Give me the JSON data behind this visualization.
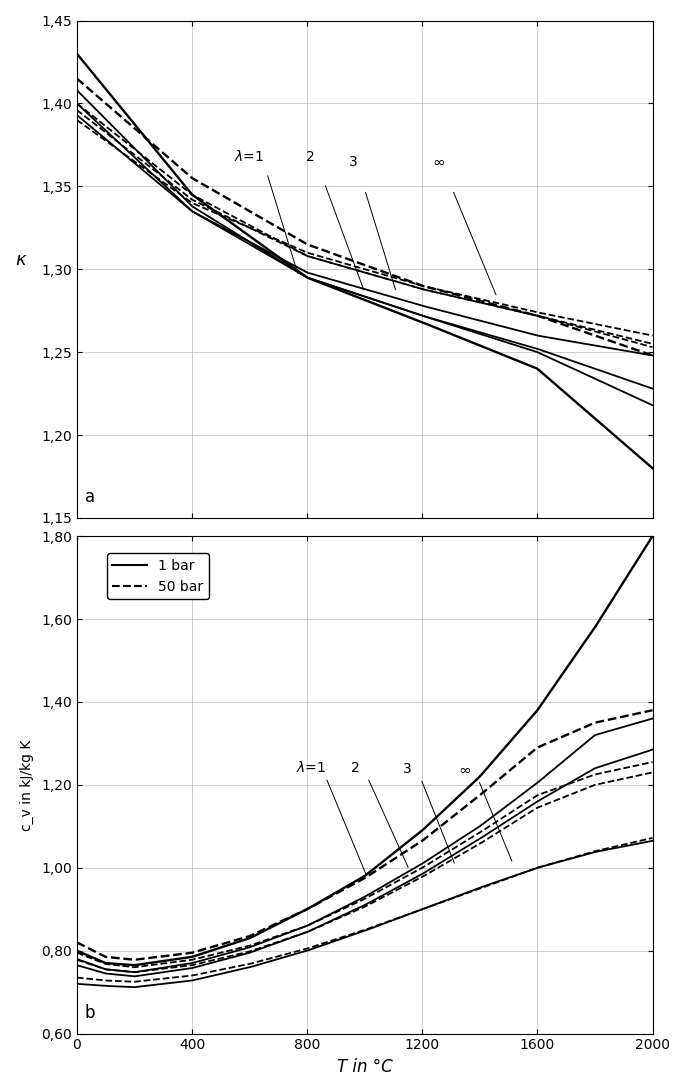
{
  "title_a": "a",
  "title_b": "b",
  "xlabel": "T in °C",
  "ylabel_a": "κ",
  "ylabel_b": "c_v in kJ/kg K",
  "xlim": [
    0,
    2000
  ],
  "ylim_a": [
    1.15,
    1.45
  ],
  "ylim_b": [
    0.6,
    1.8
  ],
  "xticks": [
    0,
    400,
    800,
    1200,
    1600,
    2000
  ],
  "yticks_a": [
    1.15,
    1.2,
    1.25,
    1.3,
    1.35,
    1.4,
    1.45
  ],
  "yticks_b": [
    0.6,
    0.8,
    1.0,
    1.2,
    1.4,
    1.6,
    1.8
  ],
  "legend_solid": "1 bar",
  "legend_dashed": "50 bar",
  "background_color": "#ffffff",
  "line_color": "#000000",
  "kappa_pts1_1": [
    [
      0,
      1.43
    ],
    [
      400,
      1.345
    ],
    [
      800,
      1.295
    ],
    [
      1200,
      1.268
    ],
    [
      1600,
      1.24
    ],
    [
      2000,
      1.18
    ]
  ],
  "kappa_pts1_50": [
    [
      0,
      1.415
    ],
    [
      400,
      1.355
    ],
    [
      800,
      1.315
    ],
    [
      1200,
      1.29
    ],
    [
      1600,
      1.272
    ],
    [
      2000,
      1.248
    ]
  ],
  "kappa_pts2_1": [
    [
      0,
      1.408
    ],
    [
      400,
      1.338
    ],
    [
      800,
      1.295
    ],
    [
      1200,
      1.272
    ],
    [
      1600,
      1.25
    ],
    [
      2000,
      1.218
    ]
  ],
  "kappa_pts2_50": [
    [
      0,
      1.4
    ],
    [
      400,
      1.345
    ],
    [
      800,
      1.308
    ],
    [
      1200,
      1.288
    ],
    [
      1600,
      1.272
    ],
    [
      2000,
      1.253
    ]
  ],
  "kappa_pts3_1": [
    [
      0,
      1.4
    ],
    [
      400,
      1.335
    ],
    [
      800,
      1.295
    ],
    [
      1200,
      1.272
    ],
    [
      1600,
      1.252
    ],
    [
      2000,
      1.228
    ]
  ],
  "kappa_pts3_50": [
    [
      0,
      1.396
    ],
    [
      400,
      1.342
    ],
    [
      800,
      1.308
    ],
    [
      1200,
      1.288
    ],
    [
      1600,
      1.272
    ],
    [
      2000,
      1.255
    ]
  ],
  "kappa_ptsi_1": [
    [
      0,
      1.393
    ],
    [
      400,
      1.335
    ],
    [
      800,
      1.298
    ],
    [
      1200,
      1.278
    ],
    [
      1600,
      1.26
    ],
    [
      2000,
      1.248
    ]
  ],
  "kappa_ptsi_50": [
    [
      0,
      1.39
    ],
    [
      400,
      1.34
    ],
    [
      800,
      1.31
    ],
    [
      1200,
      1.29
    ],
    [
      1600,
      1.274
    ],
    [
      2000,
      1.26
    ]
  ],
  "cv_pts1_1": [
    [
      0,
      0.8
    ],
    [
      100,
      0.77
    ],
    [
      200,
      0.765
    ],
    [
      400,
      0.785
    ],
    [
      600,
      0.83
    ],
    [
      800,
      0.9
    ],
    [
      1000,
      0.98
    ],
    [
      1200,
      1.09
    ],
    [
      1400,
      1.22
    ],
    [
      1600,
      1.38
    ],
    [
      1800,
      1.58
    ],
    [
      2000,
      1.8
    ]
  ],
  "cv_pts1_50": [
    [
      0,
      0.82
    ],
    [
      100,
      0.785
    ],
    [
      200,
      0.778
    ],
    [
      400,
      0.795
    ],
    [
      600,
      0.835
    ],
    [
      800,
      0.9
    ],
    [
      1000,
      0.975
    ],
    [
      1200,
      1.065
    ],
    [
      1400,
      1.175
    ],
    [
      1600,
      1.29
    ],
    [
      1800,
      1.35
    ],
    [
      2000,
      1.38
    ]
  ],
  "cv_pts2_1": [
    [
      0,
      0.78
    ],
    [
      100,
      0.755
    ],
    [
      200,
      0.748
    ],
    [
      400,
      0.77
    ],
    [
      600,
      0.808
    ],
    [
      800,
      0.86
    ],
    [
      1000,
      0.93
    ],
    [
      1200,
      1.01
    ],
    [
      1400,
      1.1
    ],
    [
      1600,
      1.205
    ],
    [
      1800,
      1.32
    ],
    [
      2000,
      1.36
    ]
  ],
  "cv_pts2_50": [
    [
      0,
      0.795
    ],
    [
      100,
      0.768
    ],
    [
      200,
      0.76
    ],
    [
      400,
      0.778
    ],
    [
      600,
      0.812
    ],
    [
      800,
      0.86
    ],
    [
      1000,
      0.925
    ],
    [
      1200,
      1.0
    ],
    [
      1400,
      1.085
    ],
    [
      1600,
      1.175
    ],
    [
      1800,
      1.225
    ],
    [
      2000,
      1.255
    ]
  ],
  "cv_pts3_1": [
    [
      0,
      0.765
    ],
    [
      100,
      0.745
    ],
    [
      200,
      0.738
    ],
    [
      400,
      0.758
    ],
    [
      600,
      0.795
    ],
    [
      800,
      0.845
    ],
    [
      1000,
      0.91
    ],
    [
      1200,
      0.985
    ],
    [
      1400,
      1.07
    ],
    [
      1600,
      1.16
    ],
    [
      1800,
      1.24
    ],
    [
      2000,
      1.285
    ]
  ],
  "cv_pts3_50": [
    [
      0,
      0.778
    ],
    [
      100,
      0.755
    ],
    [
      200,
      0.748
    ],
    [
      400,
      0.765
    ],
    [
      600,
      0.798
    ],
    [
      800,
      0.845
    ],
    [
      1000,
      0.906
    ],
    [
      1200,
      0.978
    ],
    [
      1400,
      1.058
    ],
    [
      1600,
      1.145
    ],
    [
      1800,
      1.2
    ],
    [
      2000,
      1.23
    ]
  ],
  "cv_ptsi_1": [
    [
      0,
      0.72
    ],
    [
      100,
      0.715
    ],
    [
      200,
      0.712
    ],
    [
      400,
      0.728
    ],
    [
      600,
      0.76
    ],
    [
      800,
      0.8
    ],
    [
      1000,
      0.848
    ],
    [
      1200,
      0.9
    ],
    [
      1400,
      0.952
    ],
    [
      1600,
      1.0
    ],
    [
      1800,
      1.038
    ],
    [
      2000,
      1.065
    ]
  ],
  "cv_ptsi_50": [
    [
      0,
      0.735
    ],
    [
      100,
      0.728
    ],
    [
      200,
      0.725
    ],
    [
      400,
      0.74
    ],
    [
      600,
      0.768
    ],
    [
      800,
      0.805
    ],
    [
      1000,
      0.85
    ],
    [
      1200,
      0.9
    ],
    [
      1400,
      0.95
    ],
    [
      1600,
      1.0
    ],
    [
      1800,
      1.04
    ],
    [
      2000,
      1.072
    ]
  ]
}
